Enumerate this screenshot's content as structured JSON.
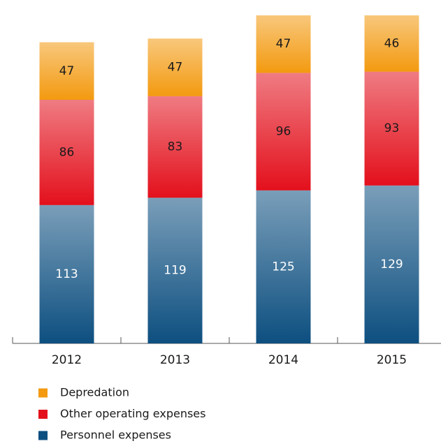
{
  "chart_data": {
    "type": "stacked_bar",
    "categories": [
      "2012",
      "2013",
      "2014",
      "2015"
    ],
    "series": [
      {
        "name": "Personnel expenses",
        "color": "#0d4f80",
        "values": [
          113,
          119,
          125,
          129
        ]
      },
      {
        "name": "Other operating expenses",
        "color": "#e3101c",
        "values": [
          86,
          83,
          96,
          93
        ]
      },
      {
        "name": "Depredation",
        "color": "#f39a10",
        "values": [
          47,
          47,
          47,
          46
        ]
      }
    ]
  }
}
